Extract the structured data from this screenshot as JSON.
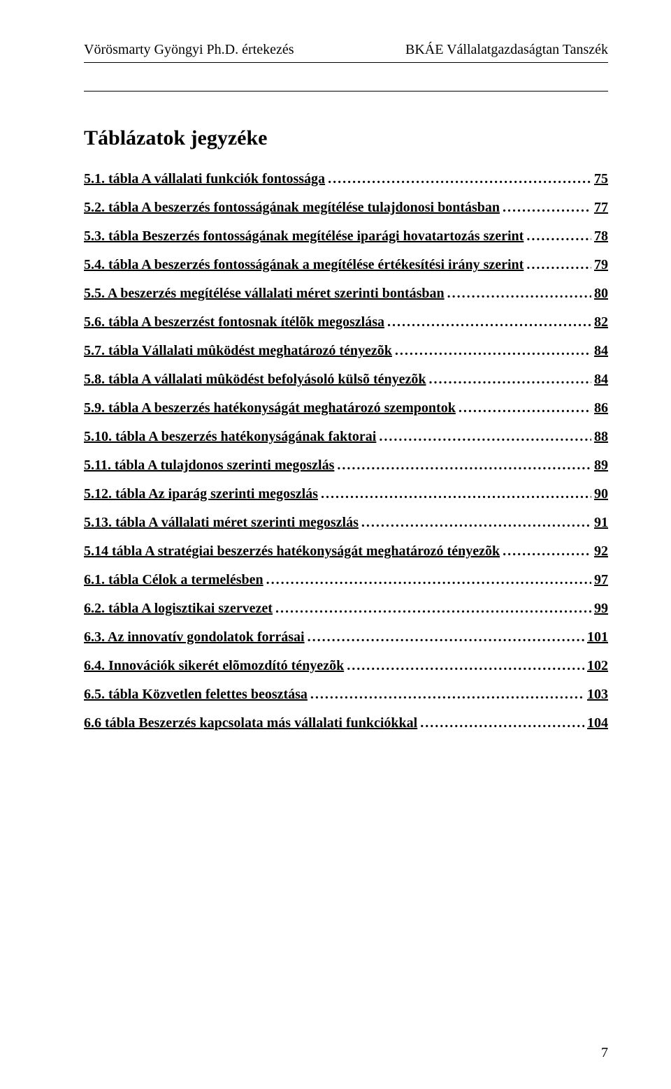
{
  "header": {
    "left": "Vörösmarty Gyöngyi Ph.D. értekezés",
    "right": "BKÁE Vállalatgazdaságtan Tanszék"
  },
  "title": "Táblázatok jegyzéke",
  "toc": [
    {
      "text": "5.1. tábla A vállalati funkciók fontossága",
      "page": "75"
    },
    {
      "text": "5.2. tábla A beszerzés fontosságának megítélése tulajdonosi bontásban",
      "page": "77"
    },
    {
      "text": "5.3. tábla Beszerzés fontosságának megítélése iparági hovatartozás szerint",
      "page": "78"
    },
    {
      "text": "5.4. tábla A beszerzés fontosságának a megítélése értékesítési irány szerint",
      "page": "79"
    },
    {
      "text": "5.5. A beszerzés megítélése vállalati méret szerinti bontásban",
      "page": "80"
    },
    {
      "text": "5.6. tábla A beszerzést fontosnak ítélõk megoszlása",
      "page": "82"
    },
    {
      "text": "5.7. tábla Vállalati mûködést meghatározó tényezõk",
      "page": "84"
    },
    {
      "text": "5.8. tábla A vállalati mûködést befolyásoló külsõ tényezõk",
      "page": "84"
    },
    {
      "text": "5.9. tábla A beszerzés hatékonyságát meghatározó szempontok",
      "page": "86"
    },
    {
      "text": "5.10. tábla A beszerzés hatékonyságának faktorai",
      "page": "88"
    },
    {
      "text": "5.11. tábla A tulajdonos szerinti megoszlás",
      "page": "89"
    },
    {
      "text": "5.12. tábla Az iparág szerinti megoszlás",
      "page": "90"
    },
    {
      "text": "5.13. tábla A vállalati méret szerinti megoszlás",
      "page": "91"
    },
    {
      "text": "5.14 tábla A stratégiai beszerzés hatékonyságát meghatározó tényezõk",
      "page": "92"
    },
    {
      "text": "6.1. tábla Célok a termelésben",
      "page": "97"
    },
    {
      "text": "6.2. tábla A logisztikai szervezet",
      "page": "99"
    },
    {
      "text": "6.3. Az innovatív gondolatok forrásai",
      "page": "101"
    },
    {
      "text": "6.4. Innovációk sikerét elõmozdító tényezõk",
      "page": "102"
    },
    {
      "text": "6.5. tábla Közvetlen felettes beosztása",
      "page": "103"
    },
    {
      "text": "6.6 tábla Beszerzés kapcsolata más vállalati funkciókkal",
      "page": "104"
    }
  ],
  "pageNumber": "7"
}
